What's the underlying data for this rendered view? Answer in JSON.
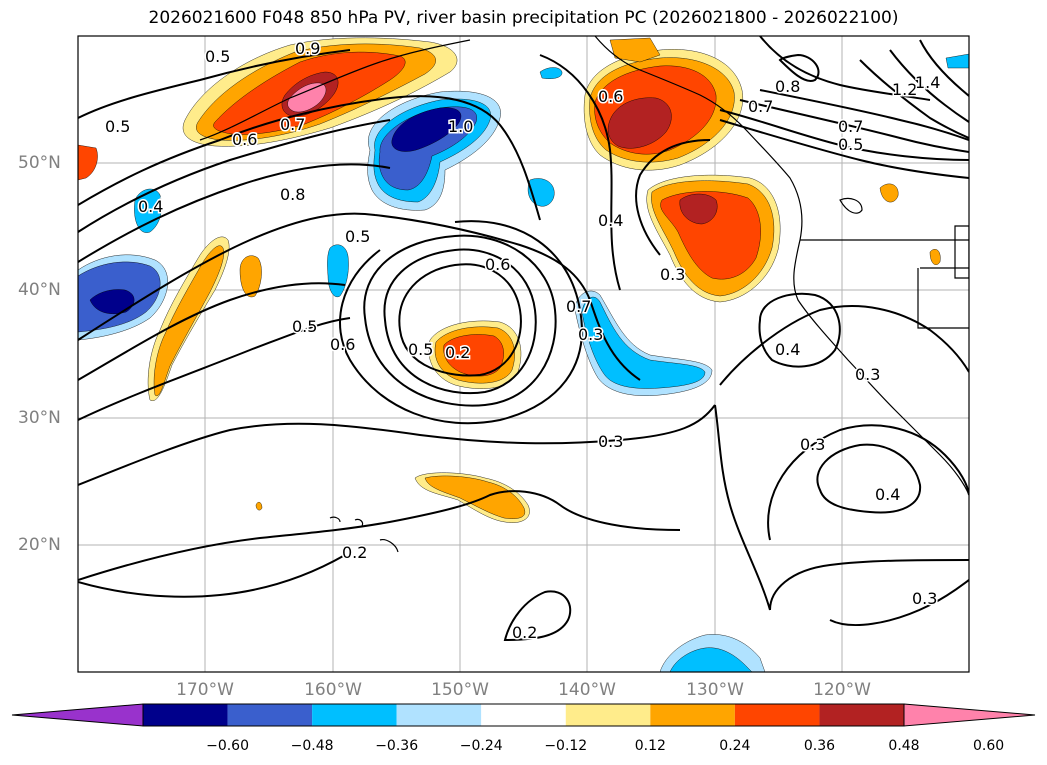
{
  "title": "2026021600 F048 850 hPa PV, river basin precipitation PC (2026021800 - 2026022100)",
  "map": {
    "lat_labels": [
      "50°N",
      "40°N",
      "30°N",
      "20°N"
    ],
    "lon_labels": [
      "170°W",
      "160°W",
      "150°W",
      "140°W",
      "130°W",
      "120°W"
    ],
    "extent": {
      "lon_min": -180,
      "lon_max": -110,
      "lat_min": 10,
      "lat_max": 60
    },
    "contour_labels": [
      "0.5",
      "0.9",
      "0.5",
      "0.6",
      "0.7",
      "1.0",
      "0.4",
      "0.8",
      "0.5",
      "0.6",
      "0.5",
      "0.6",
      "0.5",
      "0.2",
      "0.7",
      "0.4",
      "0.6",
      "0.7",
      "0.8",
      "0.7",
      "0.5",
      "1.2",
      "1.4",
      "0.3",
      "0.4",
      "0.3",
      "0.4",
      "0.3",
      "0.3",
      "0.2",
      "0.2",
      "0.3",
      "0.3"
    ]
  },
  "colorbar": {
    "colors": [
      "#9932cc",
      "#00008b",
      "#3a5fcd",
      "#00bfff",
      "#b0e2ff",
      "#ffffff",
      "#ffec8b",
      "#ffa500",
      "#ff4500",
      "#b22222",
      "#ff82ab"
    ],
    "ticks": [
      "−0.60",
      "−0.48",
      "−0.36",
      "−0.24",
      "−0.12",
      "0.12",
      "0.24",
      "0.36",
      "0.48",
      "0.60"
    ]
  }
}
